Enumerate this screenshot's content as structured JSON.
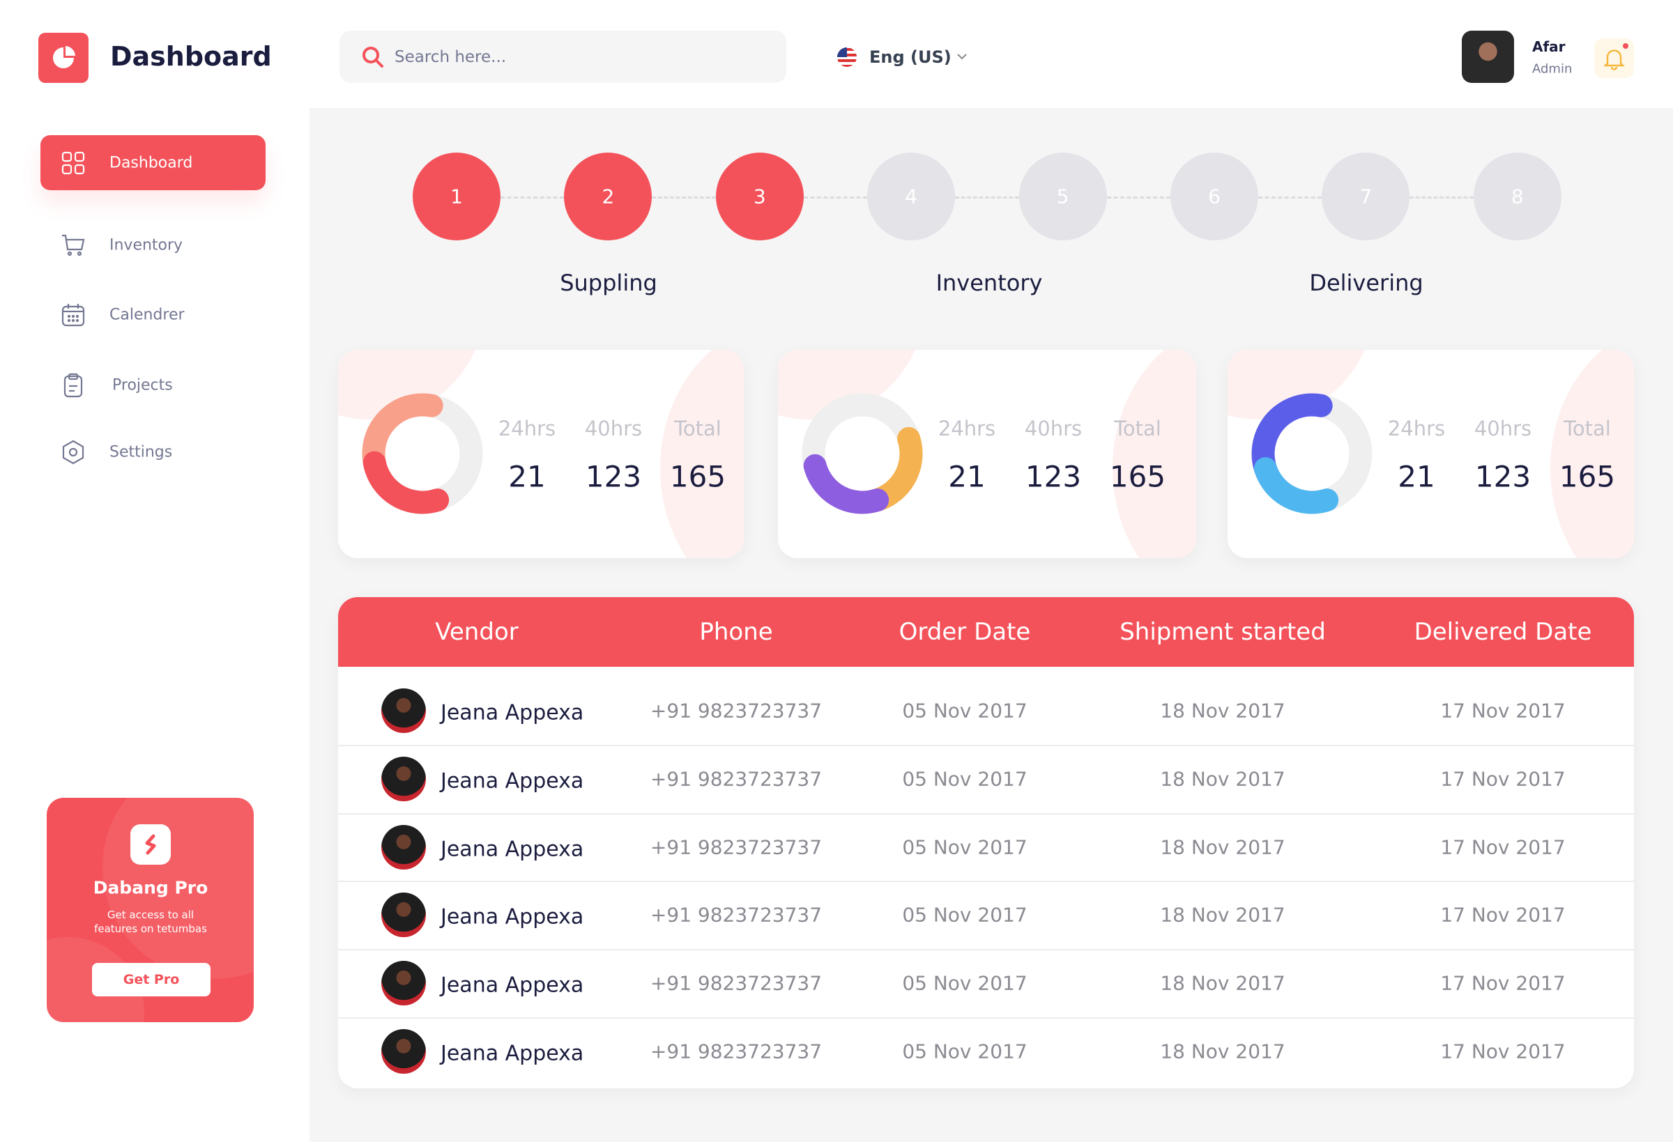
{
  "header": {
    "title": "Dashboard",
    "search_placeholder": "Search here...",
    "language": "Eng (US)",
    "user": {
      "name": "Afar",
      "role": "Admin"
    }
  },
  "sidebar": {
    "nav": [
      "Dashboard",
      "Inventory",
      "Calendrer",
      "Projects",
      "Settings"
    ],
    "promo": {
      "title": "Dabang Pro",
      "text": [
        "Get access to all",
        "features on tetumbas"
      ],
      "button": "Get Pro"
    }
  },
  "steps": {
    "items": [
      {
        "number": 1,
        "color": "#f4525a"
      },
      {
        "number": 2,
        "color": "#f4525a"
      },
      {
        "number": 3,
        "color": "#f4525a"
      },
      {
        "number": 4,
        "color": "#e4e4e8"
      },
      {
        "number": 5,
        "color": "#e4e4e8"
      },
      {
        "number": 6,
        "color": "#e4e4e8"
      },
      {
        "number": 7,
        "color": "#e4e4e8"
      },
      {
        "number": 8,
        "color": "#e4e4e8"
      }
    ],
    "labels": [
      "Suppling",
      "Inventory",
      "Delivering"
    ]
  },
  "cards": [
    {
      "stats": [
        {
          "label": "24hrs",
          "value": 21
        },
        {
          "label": "40hrs",
          "value": 123
        },
        {
          "label": "Total",
          "value": 165
        }
      ]
    },
    {
      "stats": [
        {
          "label": "24hrs",
          "value": 21
        },
        {
          "label": "40hrs",
          "value": 123
        },
        {
          "label": "Total",
          "value": 165
        }
      ]
    },
    {
      "stats": [
        {
          "label": "24hrs",
          "value": 21
        },
        {
          "label": "40hrs",
          "value": 123
        },
        {
          "label": "Total",
          "value": 165
        }
      ]
    }
  ],
  "table": {
    "columns": [
      "Vendor",
      "Phone",
      "Order Date",
      "Shipment started",
      "Delivered Date"
    ],
    "rows": [
      [
        "Jeana Appexa",
        "+91 9823723737",
        "05 Nov 2017",
        "18 Nov 2017",
        "17 Nov 2017"
      ],
      [
        "Jeana Appexa",
        "+91 9823723737",
        "05 Nov 2017",
        "18 Nov 2017",
        "17 Nov 2017"
      ],
      [
        "Jeana Appexa",
        "+91 9823723737",
        "05 Nov 2017",
        "18 Nov 2017",
        "17 Nov 2017"
      ],
      [
        "Jeana Appexa",
        "+91 9823723737",
        "05 Nov 2017",
        "18 Nov 2017",
        "17 Nov 2017"
      ],
      [
        "Jeana Appexa",
        "+91 9823723737",
        "05 Nov 2017",
        "18 Nov 2017",
        "17 Nov 2017"
      ],
      [
        "Jeana Appexa",
        "+91 9823723737",
        "05 Nov 2017",
        "18 Nov 2017",
        "17 Nov 2017"
      ]
    ]
  }
}
